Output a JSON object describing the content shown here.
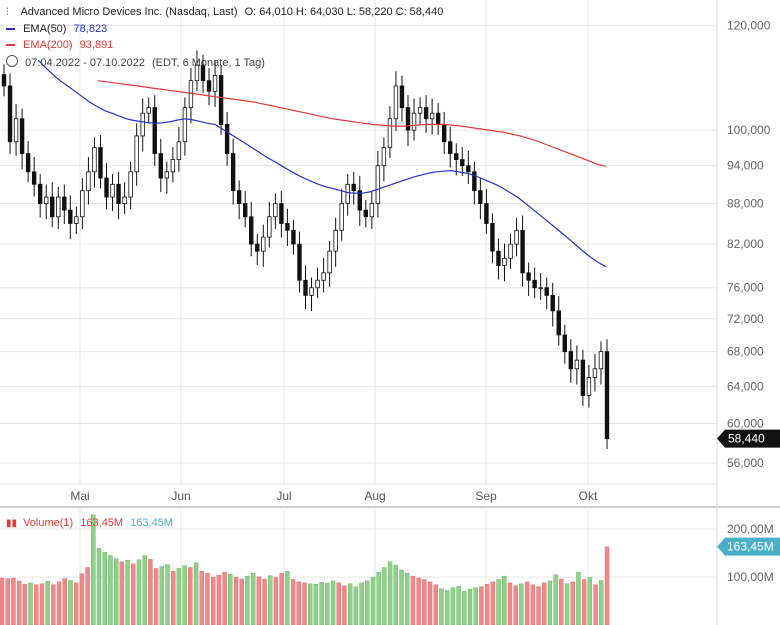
{
  "header": {
    "title": "Advanced Micro Devices Inc. (Nasdaq, Last)",
    "ohlc": "O: 64,010  H: 64,030  L: 58,220  C: 58,440",
    "ema50_label": "EMA(50)",
    "ema50_value": "78,823",
    "ema200_label": "EMA(200)",
    "ema200_value": "93,891",
    "range": "07.04.2022 - 07.10.2022",
    "range_note": "(EDT, 6 Monate, 1 Tag)"
  },
  "volume_header": {
    "label": "Volume(1)",
    "value_red": "163,45M",
    "value_blue": "163,45M"
  },
  "colors": {
    "ema50": "#2233cc",
    "ema200": "#e53935",
    "candle": "#111111",
    "vol_up": "#8fd18a",
    "vol_down": "#f08a8a",
    "vol_tag": "#4ab0c8",
    "grid": "#e6e6e6"
  },
  "chart_data": [
    {
      "type": "candlestick",
      "scale": "log",
      "ylim": [
        54000,
        125000
      ],
      "yticks": [
        "120,000",
        "100,000",
        "94,000",
        "88,000",
        "82,000",
        "76,000",
        "72,000",
        "68,000",
        "64,000",
        "60,000",
        "56,000"
      ],
      "ytick_values": [
        120000,
        100000,
        94000,
        88000,
        82000,
        76000,
        72000,
        68000,
        64000,
        60000,
        56000
      ],
      "xticks": [
        "Mai",
        "Jun",
        "Jul",
        "Aug",
        "Sep",
        "Okt"
      ],
      "last_price_label": "58,440",
      "last_price": 58440,
      "close": [
        108000,
        98000,
        102000,
        96000,
        93000,
        91000,
        88000,
        89000,
        86000,
        89000,
        87000,
        85000,
        86000,
        90000,
        93000,
        97000,
        92000,
        89000,
        91000,
        88000,
        89000,
        93000,
        99000,
        103000,
        104000,
        96000,
        92000,
        93000,
        95000,
        98000,
        104000,
        109000,
        112000,
        109000,
        107000,
        110000,
        101000,
        96000,
        90000,
        88000,
        86000,
        82000,
        81000,
        83000,
        86000,
        88000,
        85000,
        84000,
        82000,
        77000,
        75000,
        76000,
        77000,
        78000,
        81000,
        84000,
        88000,
        91000,
        90000,
        87000,
        86000,
        88000,
        94000,
        97000,
        102000,
        108000,
        104000,
        100000,
        103000,
        104000,
        102000,
        103000,
        101000,
        98000,
        96000,
        95000,
        94000,
        93000,
        90000,
        88000,
        85000,
        81000,
        79000,
        80000,
        82000,
        84000,
        78000,
        77000,
        76000,
        76000,
        75000,
        73000,
        70000,
        68000,
        66000,
        67000,
        63000,
        65000,
        66000,
        68000,
        58440
      ],
      "ema50": [
        113000,
        111500,
        110200,
        109000,
        108000,
        107000,
        106000,
        105000,
        104200,
        103500,
        103000,
        102500,
        102000,
        101700,
        101500,
        101300,
        101200,
        101300,
        101500,
        101800,
        102000,
        101800,
        101500,
        101200,
        101000,
        100200,
        99400,
        98600,
        97800,
        97000,
        96200,
        95400,
        94700,
        94000,
        93300,
        92600,
        92000,
        91500,
        91000,
        90600,
        90300,
        90000,
        89700,
        89600,
        89600,
        89800,
        90200,
        90600,
        91000,
        91400,
        91800,
        92200,
        92500,
        92800,
        93000,
        93100,
        93200,
        93000,
        92800,
        92500,
        92000,
        91500,
        91000,
        90400,
        89700,
        89000,
        88100,
        87200,
        86300,
        85400,
        84500,
        83600,
        82700,
        81800,
        80900,
        80100,
        79400,
        78823
      ],
      "ema200": [
        109000,
        108800,
        108600,
        108400,
        108200,
        108000,
        107800,
        107600,
        107400,
        107200,
        107000,
        106800,
        106600,
        106400,
        106200,
        106000,
        105800,
        105600,
        105400,
        105200,
        105000,
        104700,
        104400,
        104100,
        103800,
        103500,
        103200,
        102900,
        102600,
        102300,
        102000,
        101800,
        101600,
        101400,
        101200,
        101000,
        100900,
        100800,
        100700,
        100700,
        100800,
        100900,
        101000,
        101000,
        101000,
        100900,
        100800,
        100600,
        100400,
        100200,
        100000,
        99800,
        99600,
        99300,
        99000,
        98600,
        98200,
        97700,
        97200,
        96700,
        96200,
        95700,
        95200,
        94700,
        94200,
        93891
      ]
    },
    {
      "type": "bar",
      "title": "Volume(1)",
      "ylim": [
        0,
        240000000
      ],
      "yticks": [
        "200,00M",
        "100,00M"
      ],
      "ytick_values": [
        200000000,
        100000000
      ],
      "last_volume_label": "163,45M",
      "values": [
        98000000,
        97000000,
        98000000,
        92000000,
        85000000,
        88000000,
        84000000,
        86000000,
        91000000,
        84000000,
        90000000,
        97000000,
        93000000,
        88000000,
        107000000,
        120000000,
        230000000,
        160000000,
        152000000,
        145000000,
        138000000,
        132000000,
        135000000,
        128000000,
        136000000,
        145000000,
        137000000,
        118000000,
        122000000,
        126000000,
        112000000,
        118000000,
        124000000,
        120000000,
        130000000,
        112000000,
        108000000,
        100000000,
        104000000,
        110000000,
        106000000,
        100000000,
        96000000,
        102000000,
        108000000,
        101000000,
        96000000,
        103000000,
        99000000,
        108000000,
        112000000,
        95000000,
        90000000,
        88000000,
        86000000,
        85000000,
        89000000,
        87000000,
        92000000,
        88000000,
        82000000,
        86000000,
        80000000,
        88000000,
        92000000,
        100000000,
        110000000,
        120000000,
        132000000,
        125000000,
        115000000,
        108000000,
        102000000,
        98000000,
        95000000,
        90000000,
        84000000,
        76000000,
        72000000,
        78000000,
        81000000,
        70000000,
        75000000,
        78000000,
        80000000,
        85000000,
        90000000,
        95000000,
        102000000,
        88000000,
        82000000,
        86000000,
        90000000,
        84000000,
        80000000,
        88000000,
        92000000,
        105000000,
        96000000,
        86000000,
        90000000,
        110000000,
        95000000,
        99000000,
        84000000,
        93000000,
        163450000
      ],
      "up": [
        false,
        false,
        false,
        false,
        false,
        true,
        false,
        false,
        true,
        false,
        false,
        false,
        true,
        false,
        false,
        false,
        true,
        true,
        true,
        true,
        true,
        false,
        true,
        false,
        true,
        true,
        false,
        false,
        true,
        true,
        false,
        true,
        true,
        false,
        true,
        false,
        false,
        false,
        false,
        false,
        true,
        false,
        false,
        true,
        true,
        false,
        false,
        true,
        false,
        false,
        true,
        false,
        false,
        false,
        true,
        true,
        true,
        true,
        true,
        false,
        false,
        true,
        true,
        true,
        true,
        true,
        true,
        true,
        true,
        true,
        true,
        true,
        false,
        false,
        false,
        false,
        false,
        true,
        true,
        true,
        true,
        true,
        true,
        true,
        false,
        false,
        false,
        true,
        true,
        false,
        false,
        true,
        false,
        false,
        false,
        false,
        true,
        true,
        false,
        true,
        false,
        true,
        false,
        true,
        false,
        true,
        false
      ]
    }
  ]
}
